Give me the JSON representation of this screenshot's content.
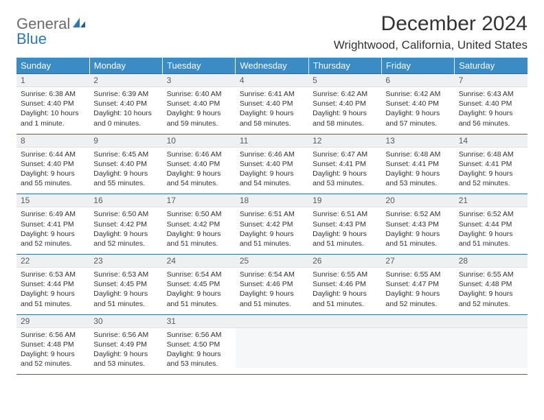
{
  "logo": {
    "word1": "General",
    "word2": "Blue"
  },
  "title": "December 2024",
  "location": "Wrightwood, California, United States",
  "colors": {
    "header_bg": "#3b8bc4",
    "header_text": "#ffffff",
    "daynum_bg": "#eef0f2",
    "row_border": "#2a6a9c",
    "logo_gray": "#6a6a6a",
    "logo_blue": "#2a7ab8"
  },
  "day_headers": [
    "Sunday",
    "Monday",
    "Tuesday",
    "Wednesday",
    "Thursday",
    "Friday",
    "Saturday"
  ],
  "weeks": [
    [
      {
        "n": "1",
        "sr": "6:38 AM",
        "ss": "4:40 PM",
        "dl": "10 hours and 1 minute."
      },
      {
        "n": "2",
        "sr": "6:39 AM",
        "ss": "4:40 PM",
        "dl": "10 hours and 0 minutes."
      },
      {
        "n": "3",
        "sr": "6:40 AM",
        "ss": "4:40 PM",
        "dl": "9 hours and 59 minutes."
      },
      {
        "n": "4",
        "sr": "6:41 AM",
        "ss": "4:40 PM",
        "dl": "9 hours and 58 minutes."
      },
      {
        "n": "5",
        "sr": "6:42 AM",
        "ss": "4:40 PM",
        "dl": "9 hours and 58 minutes."
      },
      {
        "n": "6",
        "sr": "6:42 AM",
        "ss": "4:40 PM",
        "dl": "9 hours and 57 minutes."
      },
      {
        "n": "7",
        "sr": "6:43 AM",
        "ss": "4:40 PM",
        "dl": "9 hours and 56 minutes."
      }
    ],
    [
      {
        "n": "8",
        "sr": "6:44 AM",
        "ss": "4:40 PM",
        "dl": "9 hours and 55 minutes."
      },
      {
        "n": "9",
        "sr": "6:45 AM",
        "ss": "4:40 PM",
        "dl": "9 hours and 55 minutes."
      },
      {
        "n": "10",
        "sr": "6:46 AM",
        "ss": "4:40 PM",
        "dl": "9 hours and 54 minutes."
      },
      {
        "n": "11",
        "sr": "6:46 AM",
        "ss": "4:40 PM",
        "dl": "9 hours and 54 minutes."
      },
      {
        "n": "12",
        "sr": "6:47 AM",
        "ss": "4:41 PM",
        "dl": "9 hours and 53 minutes."
      },
      {
        "n": "13",
        "sr": "6:48 AM",
        "ss": "4:41 PM",
        "dl": "9 hours and 53 minutes."
      },
      {
        "n": "14",
        "sr": "6:48 AM",
        "ss": "4:41 PM",
        "dl": "9 hours and 52 minutes."
      }
    ],
    [
      {
        "n": "15",
        "sr": "6:49 AM",
        "ss": "4:41 PM",
        "dl": "9 hours and 52 minutes."
      },
      {
        "n": "16",
        "sr": "6:50 AM",
        "ss": "4:42 PM",
        "dl": "9 hours and 52 minutes."
      },
      {
        "n": "17",
        "sr": "6:50 AM",
        "ss": "4:42 PM",
        "dl": "9 hours and 51 minutes."
      },
      {
        "n": "18",
        "sr": "6:51 AM",
        "ss": "4:42 PM",
        "dl": "9 hours and 51 minutes."
      },
      {
        "n": "19",
        "sr": "6:51 AM",
        "ss": "4:43 PM",
        "dl": "9 hours and 51 minutes."
      },
      {
        "n": "20",
        "sr": "6:52 AM",
        "ss": "4:43 PM",
        "dl": "9 hours and 51 minutes."
      },
      {
        "n": "21",
        "sr": "6:52 AM",
        "ss": "4:44 PM",
        "dl": "9 hours and 51 minutes."
      }
    ],
    [
      {
        "n": "22",
        "sr": "6:53 AM",
        "ss": "4:44 PM",
        "dl": "9 hours and 51 minutes."
      },
      {
        "n": "23",
        "sr": "6:53 AM",
        "ss": "4:45 PM",
        "dl": "9 hours and 51 minutes."
      },
      {
        "n": "24",
        "sr": "6:54 AM",
        "ss": "4:45 PM",
        "dl": "9 hours and 51 minutes."
      },
      {
        "n": "25",
        "sr": "6:54 AM",
        "ss": "4:46 PM",
        "dl": "9 hours and 51 minutes."
      },
      {
        "n": "26",
        "sr": "6:55 AM",
        "ss": "4:46 PM",
        "dl": "9 hours and 51 minutes."
      },
      {
        "n": "27",
        "sr": "6:55 AM",
        "ss": "4:47 PM",
        "dl": "9 hours and 52 minutes."
      },
      {
        "n": "28",
        "sr": "6:55 AM",
        "ss": "4:48 PM",
        "dl": "9 hours and 52 minutes."
      }
    ],
    [
      {
        "n": "29",
        "sr": "6:56 AM",
        "ss": "4:48 PM",
        "dl": "9 hours and 52 minutes."
      },
      {
        "n": "30",
        "sr": "6:56 AM",
        "ss": "4:49 PM",
        "dl": "9 hours and 53 minutes."
      },
      {
        "n": "31",
        "sr": "6:56 AM",
        "ss": "4:50 PM",
        "dl": "9 hours and 53 minutes."
      },
      null,
      null,
      null,
      null
    ]
  ],
  "labels": {
    "sunrise": "Sunrise:",
    "sunset": "Sunset:",
    "daylight": "Daylight:"
  }
}
